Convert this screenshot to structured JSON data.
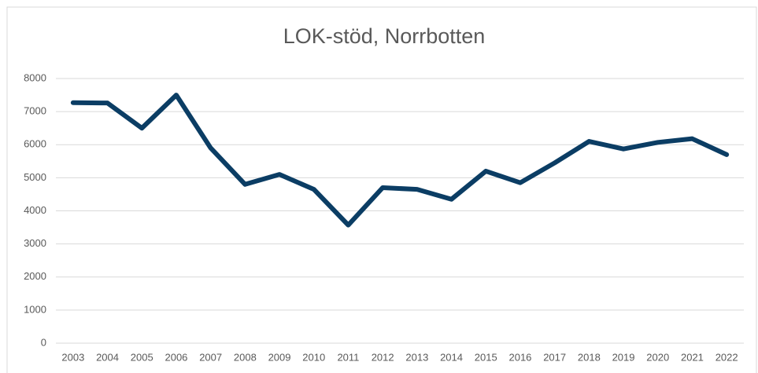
{
  "chart_data": {
    "type": "line",
    "title": "LOK-stöd, Norrbotten",
    "categories": [
      "2003",
      "2004",
      "2005",
      "2006",
      "2007",
      "2008",
      "2009",
      "2010",
      "2011",
      "2012",
      "2013",
      "2014",
      "2015",
      "2016",
      "2017",
      "2018",
      "2019",
      "2020",
      "2021",
      "2022"
    ],
    "series": [
      {
        "name": "LOK-stöd",
        "color": "#0b3d64",
        "values": [
          7270,
          7260,
          6500,
          7500,
          5900,
          4800,
          5100,
          4650,
          3570,
          4700,
          4650,
          4350,
          5200,
          4850,
          5450,
          6100,
          5870,
          6070,
          6180,
          5700
        ]
      }
    ],
    "ylim": [
      0,
      8000
    ],
    "yticks": [
      0,
      1000,
      2000,
      3000,
      4000,
      5000,
      6000,
      7000,
      8000
    ],
    "grid": true
  }
}
